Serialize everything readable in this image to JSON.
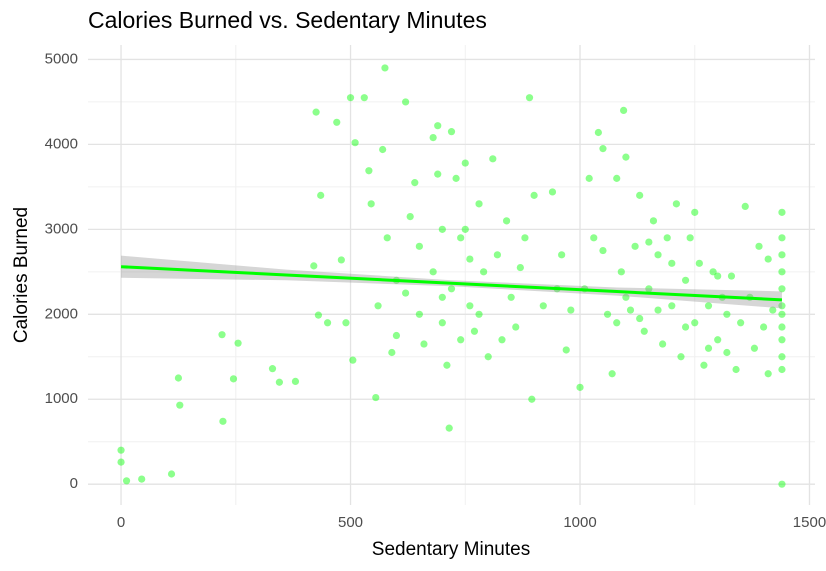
{
  "chart_data": {
    "type": "scatter",
    "title": "Calories Burned vs. Sedentary Minutes",
    "x_label": "Sedentary Minutes",
    "y_label": "Calories Burned",
    "color": "#00ff00",
    "grid": true,
    "xlim": [
      -72,
      1512
    ],
    "ylim": [
      -245,
      5170
    ],
    "xticks": [
      0,
      500,
      1000,
      1500
    ],
    "yticks": [
      0,
      1000,
      2000,
      3000,
      4000,
      5000
    ],
    "x_minor_ticks": [
      250,
      750,
      1250
    ],
    "y_minor_ticks": [
      500,
      1500,
      2500,
      3500,
      4500
    ],
    "series": [
      {
        "name": "Calories",
        "color": "#00ff00",
        "x": [
          0,
          0,
          12,
          45,
          110,
          125,
          128,
          220,
          222,
          245,
          255,
          330,
          345,
          380,
          420,
          425,
          435,
          430,
          450,
          470,
          480,
          490,
          500,
          505,
          510,
          530,
          540,
          545,
          555,
          570,
          575,
          580,
          590,
          600,
          620,
          630,
          650,
          660,
          680,
          690,
          700,
          700,
          710,
          715,
          720,
          730,
          740,
          750,
          760,
          770,
          780,
          790,
          800,
          810,
          820,
          840,
          850,
          860,
          880,
          890,
          895,
          900,
          920,
          940,
          960,
          970,
          980,
          1000,
          1010,
          1020,
          1030,
          1040,
          1050,
          1060,
          1070,
          1080,
          1090,
          1095,
          1100,
          1110,
          1120,
          1130,
          1140,
          1150,
          1160,
          1170,
          1180,
          1190,
          1200,
          1210,
          1220,
          1230,
          1240,
          1250,
          1260,
          1270,
          1280,
          1290,
          1300,
          1310,
          1320,
          1330,
          1340,
          1350,
          1360,
          1370,
          1380,
          1390,
          1400,
          1410,
          1440,
          1440,
          1440,
          1440,
          1440,
          1440,
          1440,
          1440,
          1440,
          1440,
          1440,
          1440,
          1420,
          1410,
          650,
          680,
          700,
          720,
          740,
          760,
          780,
          600,
          620,
          560,
          640,
          690,
          750,
          830,
          870,
          950,
          1050,
          1080,
          1100,
          1130,
          1150,
          1170,
          1200,
          1230,
          1250,
          1280,
          1300,
          1320
        ],
        "y": [
          400,
          260,
          40,
          60,
          120,
          1250,
          930,
          1760,
          740,
          1240,
          1660,
          1360,
          1200,
          1210,
          2570,
          4380,
          3400,
          1990,
          1900,
          4260,
          2640,
          1900,
          4550,
          1460,
          4020,
          4550,
          3690,
          3300,
          1020,
          3940,
          4900,
          2900,
          1550,
          2400,
          4500,
          3150,
          2000,
          1650,
          4080,
          4220,
          3000,
          2200,
          1400,
          660,
          4150,
          3600,
          2900,
          3780,
          2100,
          1800,
          3300,
          2500,
          1500,
          3830,
          2700,
          3100,
          2200,
          1850,
          2900,
          4550,
          1000,
          3400,
          2100,
          3440,
          2700,
          1580,
          2050,
          1140,
          2300,
          3600,
          2900,
          4140,
          3950,
          2000,
          1300,
          3600,
          2500,
          4400,
          3850,
          2050,
          2800,
          3400,
          1800,
          2300,
          3100,
          2700,
          1650,
          2900,
          2100,
          3300,
          1500,
          2400,
          2900,
          1900,
          2600,
          1400,
          2100,
          2500,
          1700,
          2200,
          1550,
          2450,
          1350,
          1900,
          3270,
          2200,
          1600,
          2800,
          1850,
          2650,
          0,
          1350,
          1500,
          1700,
          1850,
          2000,
          2100,
          2300,
          2500,
          2700,
          2900,
          3200,
          2050,
          1300,
          2800,
          2500,
          1900,
          2300,
          1700,
          2650,
          2000,
          1750,
          2250,
          2100,
          3550,
          3650,
          3000,
          1700,
          2550,
          2300,
          2750,
          1900,
          2200,
          1950,
          2850,
          2050,
          2600,
          1850,
          3200,
          1600,
          2450,
          2000
        ]
      }
    ],
    "trend": {
      "x": [
        0,
        360,
        720,
        1080,
        1440
      ],
      "y": [
        2560,
        2463,
        2365,
        2268,
        2170
      ],
      "lower": [
        2430,
        2400,
        2330,
        2220,
        2070
      ],
      "upper": [
        2690,
        2526,
        2400,
        2316,
        2270
      ]
    }
  }
}
